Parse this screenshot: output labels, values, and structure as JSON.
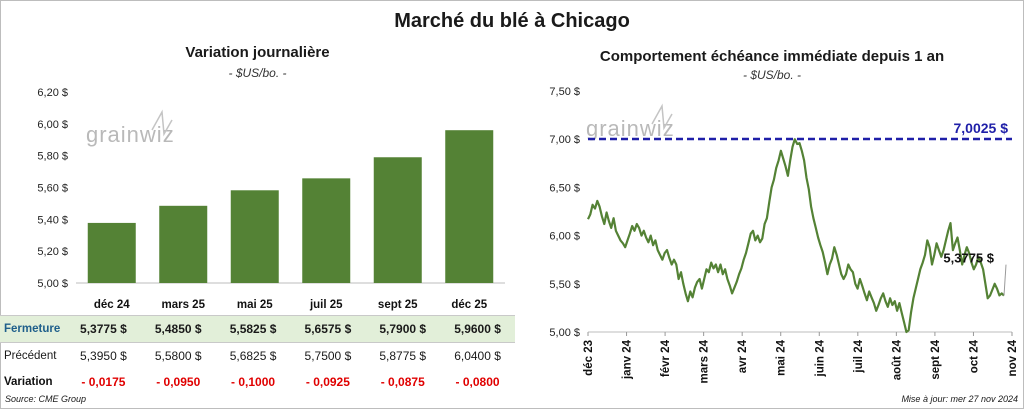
{
  "main_title": "Marché du blé à Chicago",
  "left_panel": {
    "title": "Variation journalière",
    "subtitle": "- $US/bo. -"
  },
  "right_panel": {
    "title": "Comportement échéance immédiate depuis 1 an",
    "subtitle": "- $US/bo. -"
  },
  "watermark": "grainwiz",
  "colors": {
    "bars": "#548235",
    "line": "#548235",
    "reference_line": "#1f1fa8",
    "close_row_bg": "#e2efd9",
    "negative": "#e00000"
  },
  "table": {
    "rows": [
      {
        "label": "Fermeture",
        "values": [
          "5,3775  $",
          "5,4850  $",
          "5,5825  $",
          "5,6575  $",
          "5,7900  $",
          "5,9600  $"
        ]
      },
      {
        "label": "Précédent",
        "values": [
          "5,3950  $",
          "5,5800  $",
          "5,6825  $",
          "5,7500  $",
          "5,8775  $",
          "6,0400  $"
        ]
      },
      {
        "label": "Variation",
        "values": [
          "- 0,0175",
          "- 0,0950",
          "- 0,1000",
          "- 0,0925",
          "- 0,0875",
          "- 0,0800"
        ]
      }
    ]
  },
  "footer": {
    "source": "Source: CME Group",
    "updated": "Mise à jour: mer 27 nov 2024"
  },
  "chart_data": [
    {
      "type": "bar",
      "title": "Variation journalière",
      "categories": [
        "déc 24",
        "mars 25",
        "mai 25",
        "juil 25",
        "sept 25",
        "déc 25"
      ],
      "values": [
        5.3775,
        5.485,
        5.5825,
        5.6575,
        5.79,
        5.96
      ],
      "ylim": [
        5.0,
        6.2
      ],
      "yticks": [
        "5,00 $",
        "5,20 $",
        "5,40 $",
        "5,60 $",
        "5,80 $",
        "6,00 $",
        "6,20 $"
      ],
      "grid": false
    },
    {
      "type": "line",
      "title": "Comportement échéance immédiate depuis 1 an",
      "ylim": [
        5.0,
        7.5
      ],
      "yticks": [
        "5,00 $",
        "5,50 $",
        "6,00 $",
        "6,50 $",
        "7,00 $",
        "7,50 $"
      ],
      "xticks": [
        "déc 23",
        "janv 24",
        "févr 24",
        "mars 24",
        "avr 24",
        "mai 24",
        "juin 24",
        "juil 24",
        "août 24",
        "sept 24",
        "oct 24",
        "nov 24"
      ],
      "reference": {
        "value": 7.0025,
        "label": "7,0025 $"
      },
      "last": {
        "value": 5.3775,
        "label": "5,3775 $"
      },
      "series": [
        {
          "values": [
            6.17,
            6.22,
            6.32,
            6.28,
            6.36,
            6.3,
            6.2,
            6.12,
            6.24,
            6.15,
            6.08,
            6.18,
            6.05,
            6.0,
            5.95,
            5.92,
            5.88,
            5.95,
            6.02,
            6.1,
            6.05,
            6.12,
            6.08,
            6.0,
            6.05,
            5.98,
            5.93,
            6.0,
            5.9,
            5.95,
            5.85,
            5.8,
            5.75,
            5.82,
            5.85,
            5.77,
            5.7,
            5.75,
            5.7,
            5.55,
            5.62,
            5.5,
            5.4,
            5.32,
            5.42,
            5.36,
            5.46,
            5.52,
            5.55,
            5.45,
            5.55,
            5.65,
            5.62,
            5.72,
            5.66,
            5.7,
            5.62,
            5.7,
            5.6,
            5.65,
            5.55,
            5.48,
            5.4,
            5.46,
            5.52,
            5.6,
            5.66,
            5.75,
            5.82,
            5.92,
            6.02,
            6.05,
            5.95,
            6.0,
            5.93,
            5.97,
            6.12,
            6.18,
            6.35,
            6.5,
            6.58,
            6.7,
            6.78,
            6.88,
            6.8,
            6.72,
            6.62,
            6.78,
            6.92,
            7.0,
            6.95,
            6.96,
            6.88,
            6.78,
            6.6,
            6.48,
            6.3,
            6.18,
            6.08,
            5.98,
            5.9,
            5.83,
            5.72,
            5.6,
            5.7,
            5.76,
            5.88,
            5.8,
            5.7,
            5.6,
            5.55,
            5.6,
            5.7,
            5.65,
            5.62,
            5.5,
            5.45,
            5.55,
            5.48,
            5.4,
            5.33,
            5.42,
            5.36,
            5.3,
            5.22,
            5.28,
            5.35,
            5.4,
            5.32,
            5.26,
            5.35,
            5.28,
            5.32,
            5.22,
            5.3,
            5.2,
            5.1,
            5.0,
            5.02,
            5.2,
            5.35,
            5.45,
            5.55,
            5.65,
            5.72,
            5.8,
            5.95,
            5.88,
            5.7,
            5.8,
            5.92,
            5.85,
            5.78,
            5.85,
            5.95,
            6.05,
            6.13,
            5.85,
            5.92,
            5.98,
            5.85,
            5.7,
            5.8,
            5.88,
            5.82,
            5.72,
            5.65,
            5.7,
            5.78,
            5.72,
            5.65,
            5.5,
            5.35,
            5.38,
            5.44,
            5.5,
            5.45,
            5.38,
            5.4,
            5.3775
          ]
        }
      ]
    }
  ]
}
